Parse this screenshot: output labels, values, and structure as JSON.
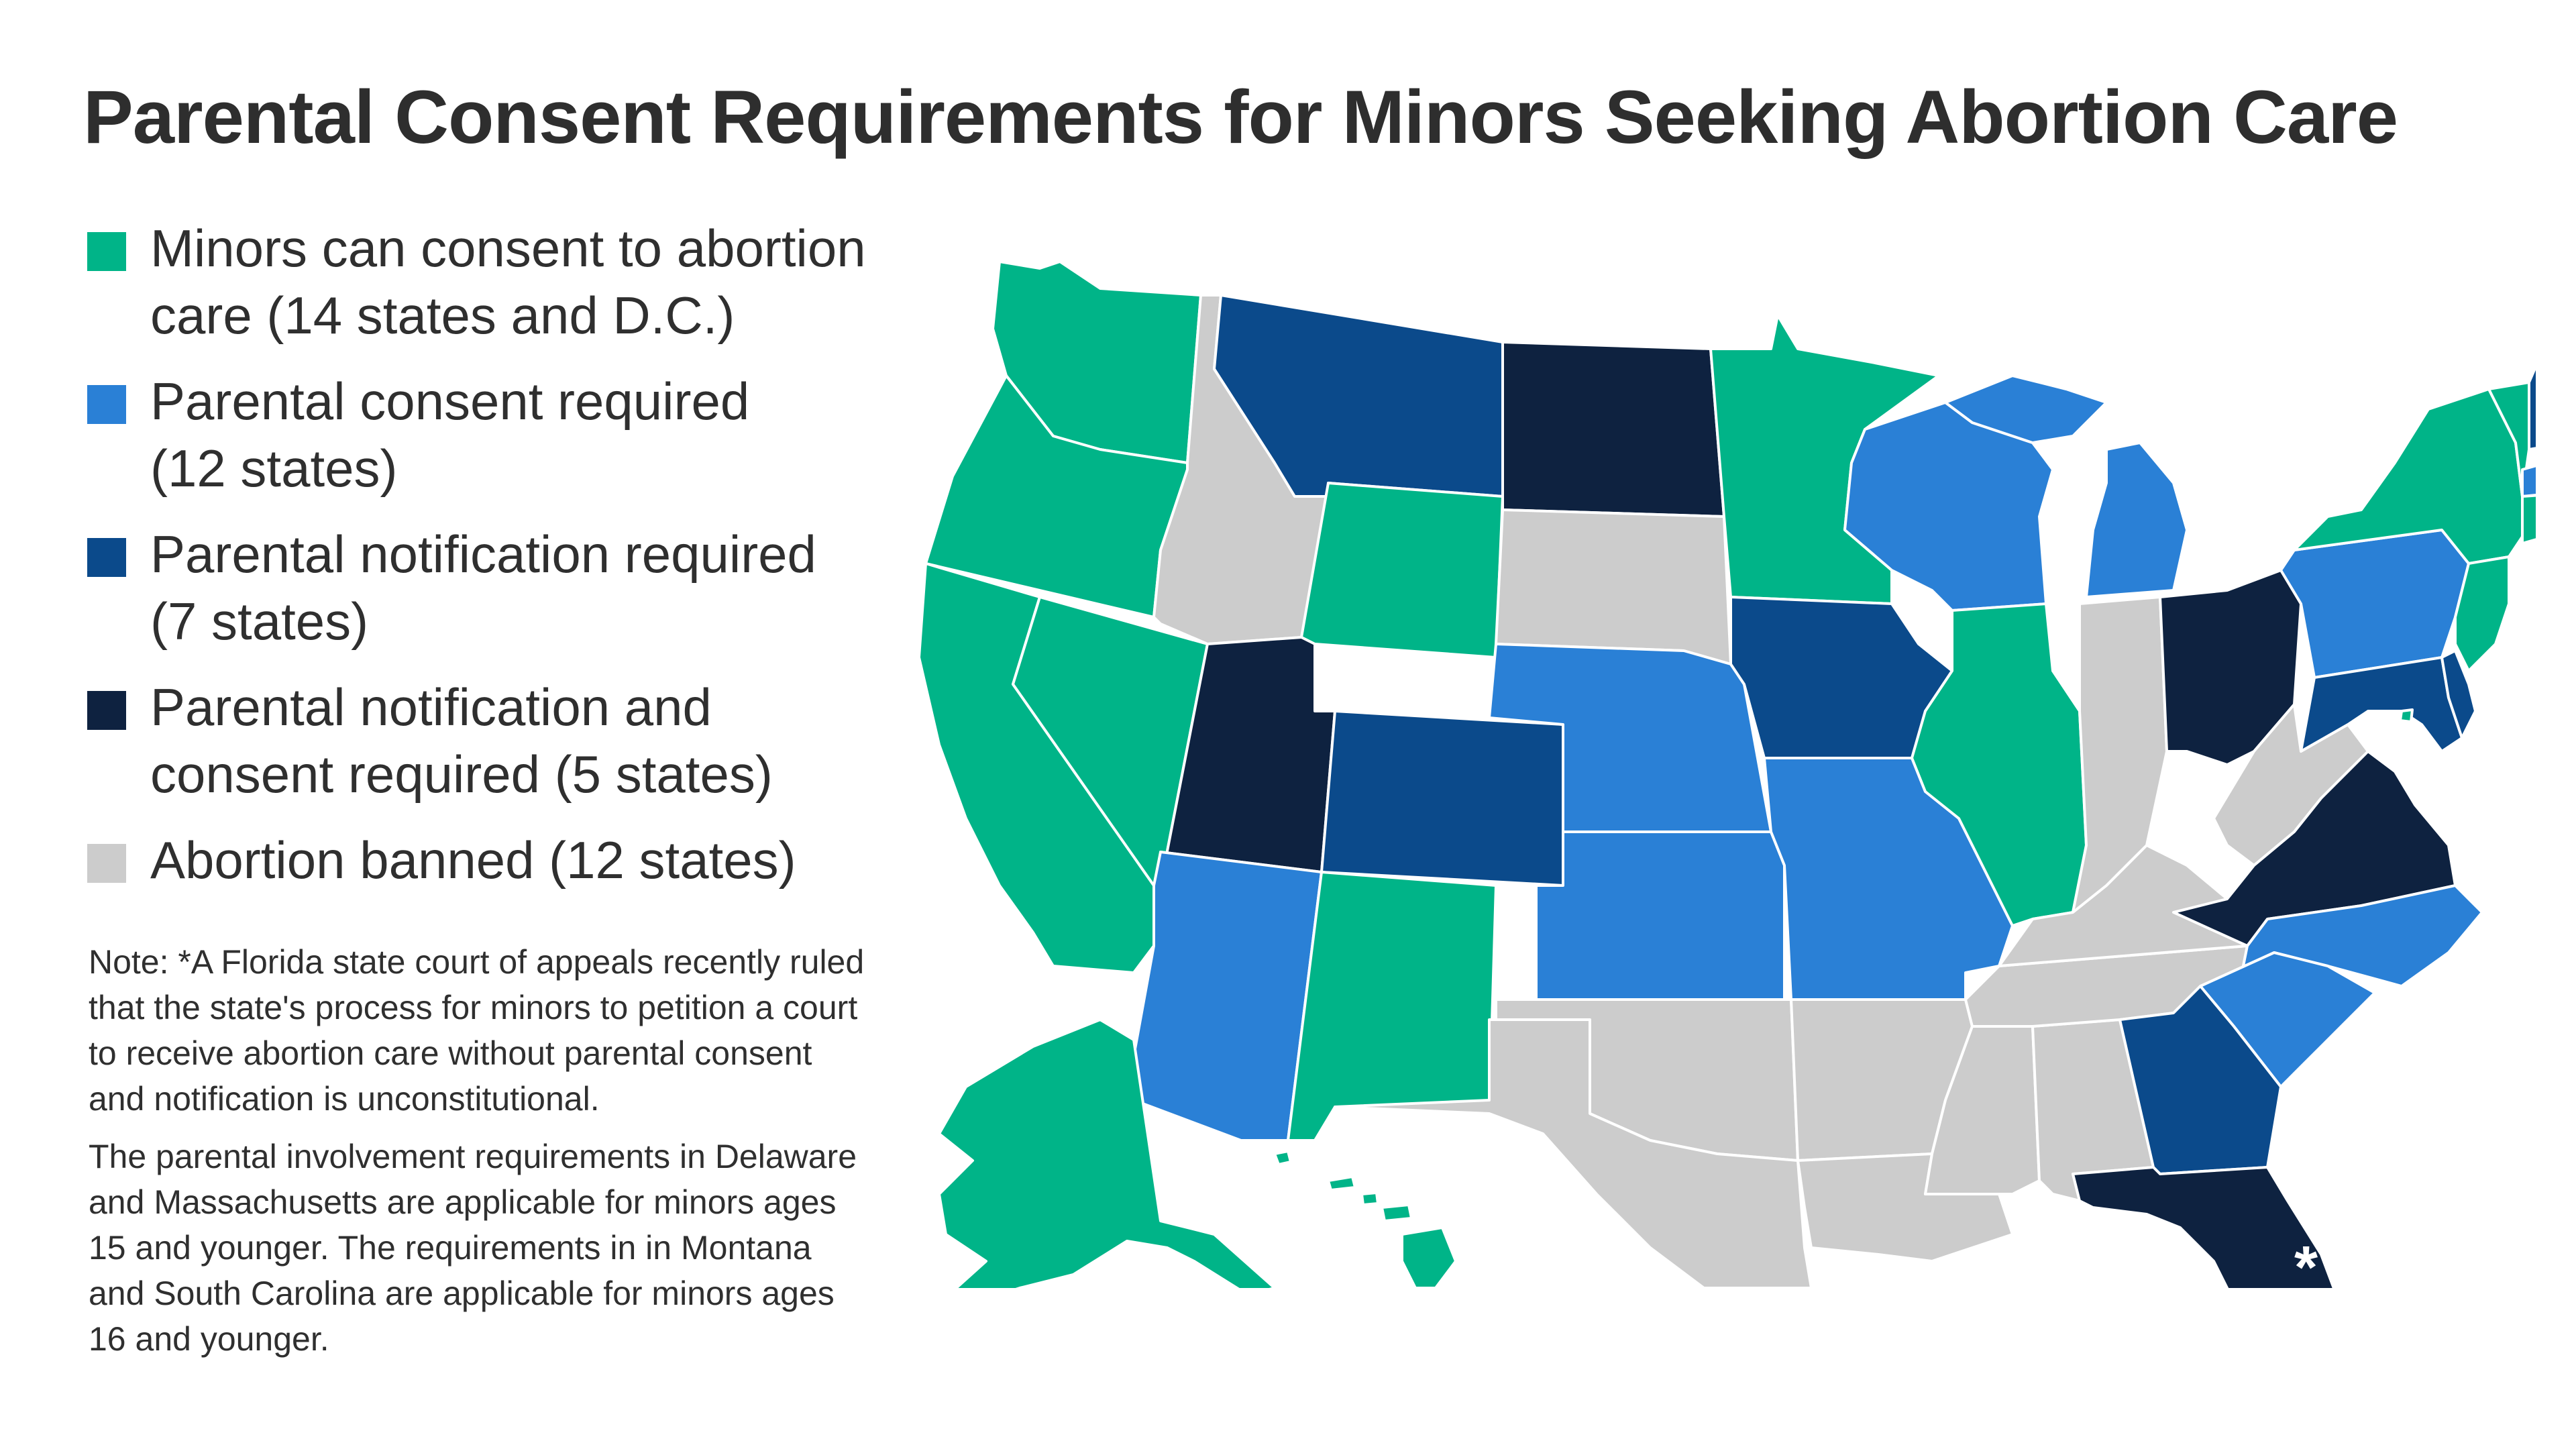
{
  "title": "Parental Consent Requirements for Minors Seeking Abortion Care",
  "legend": [
    {
      "line1": "Minors can consent to abortion",
      "line2": "care (14 states and D.C.)",
      "color": "#00b488"
    },
    {
      "line1": "Parental consent required",
      "line2": "(12 states)",
      "color": "#2a80d6"
    },
    {
      "line1": "Parental notification required",
      "line2": "(7 states)",
      "color": "#0b4a8b"
    },
    {
      "line1": "Parental notification and",
      "line2": "consent required (5 states)",
      "color": "#0e2240"
    },
    {
      "line1": "Abortion banned (12 states)",
      "line2": "",
      "color": "#cccccc"
    }
  ],
  "notes": [
    "Note: *A Florida state court of appeals recently ruled that the state's process for minors to petition a court to receive abortion care without parental consent and notification is unconstitutional.",
    "The parental involvement requirements in Delaware and Massachusetts are applicable for minors ages 15 and younger. The requirements in in Montana and South Carolina are applicable for minors ages 16 and younger."
  ],
  "map": {
    "florida_marker": "*",
    "categories": {
      "minors_consent": [
        "WA",
        "OR",
        "CA",
        "NV",
        "WY",
        "NM",
        "MN",
        "IL",
        "NY",
        "VT",
        "CT",
        "NJ",
        "AK",
        "HI",
        "DC"
      ],
      "parental_consent": [
        "AZ",
        "NE",
        "KS",
        "MO",
        "WI",
        "MI",
        "PA",
        "ME",
        "MA",
        "RI",
        "NC",
        "SC"
      ],
      "parental_notification": [
        "MT",
        "CO",
        "IA",
        "GA",
        "NH",
        "DE",
        "MD"
      ],
      "notification_and_consent": [
        "UT",
        "ND",
        "OH",
        "VA",
        "FL"
      ],
      "banned": [
        "ID",
        "SD",
        "OK",
        "TX",
        "AR",
        "LA",
        "MS",
        "AL",
        "TN",
        "KY",
        "IN",
        "WV"
      ]
    }
  }
}
